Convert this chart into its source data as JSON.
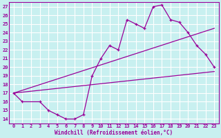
{
  "xlabel": "Windchill (Refroidissement éolien,°C)",
  "bg_color": "#c8f0f0",
  "line_color": "#990099",
  "grid_color": "#ffffff",
  "xlim": [
    -0.5,
    23.5
  ],
  "ylim": [
    13.5,
    27.5
  ],
  "xticks": [
    0,
    1,
    2,
    3,
    4,
    5,
    6,
    7,
    8,
    9,
    10,
    11,
    12,
    13,
    14,
    15,
    16,
    17,
    18,
    19,
    20,
    21,
    22,
    23
  ],
  "yticks": [
    14,
    15,
    16,
    17,
    18,
    19,
    20,
    21,
    22,
    23,
    24,
    25,
    26,
    27
  ],
  "series": [
    {
      "x": [
        0,
        1,
        3,
        4,
        5,
        6,
        7,
        8,
        9,
        10,
        11,
        12,
        13,
        14,
        15,
        16,
        17,
        18,
        19,
        20,
        21,
        22,
        23
      ],
      "y": [
        17,
        16,
        16,
        15,
        14.5,
        14,
        14,
        14.5,
        19,
        21,
        22.5,
        22,
        25.5,
        25,
        24.5,
        27,
        27.2,
        25.5,
        25.2,
        24,
        22.5,
        21.5,
        20
      ],
      "marker": true
    },
    {
      "x": [
        0,
        23
      ],
      "y": [
        17,
        24.5
      ],
      "marker": false
    },
    {
      "x": [
        0,
        23
      ],
      "y": [
        17,
        19.5
      ],
      "marker": false
    }
  ]
}
